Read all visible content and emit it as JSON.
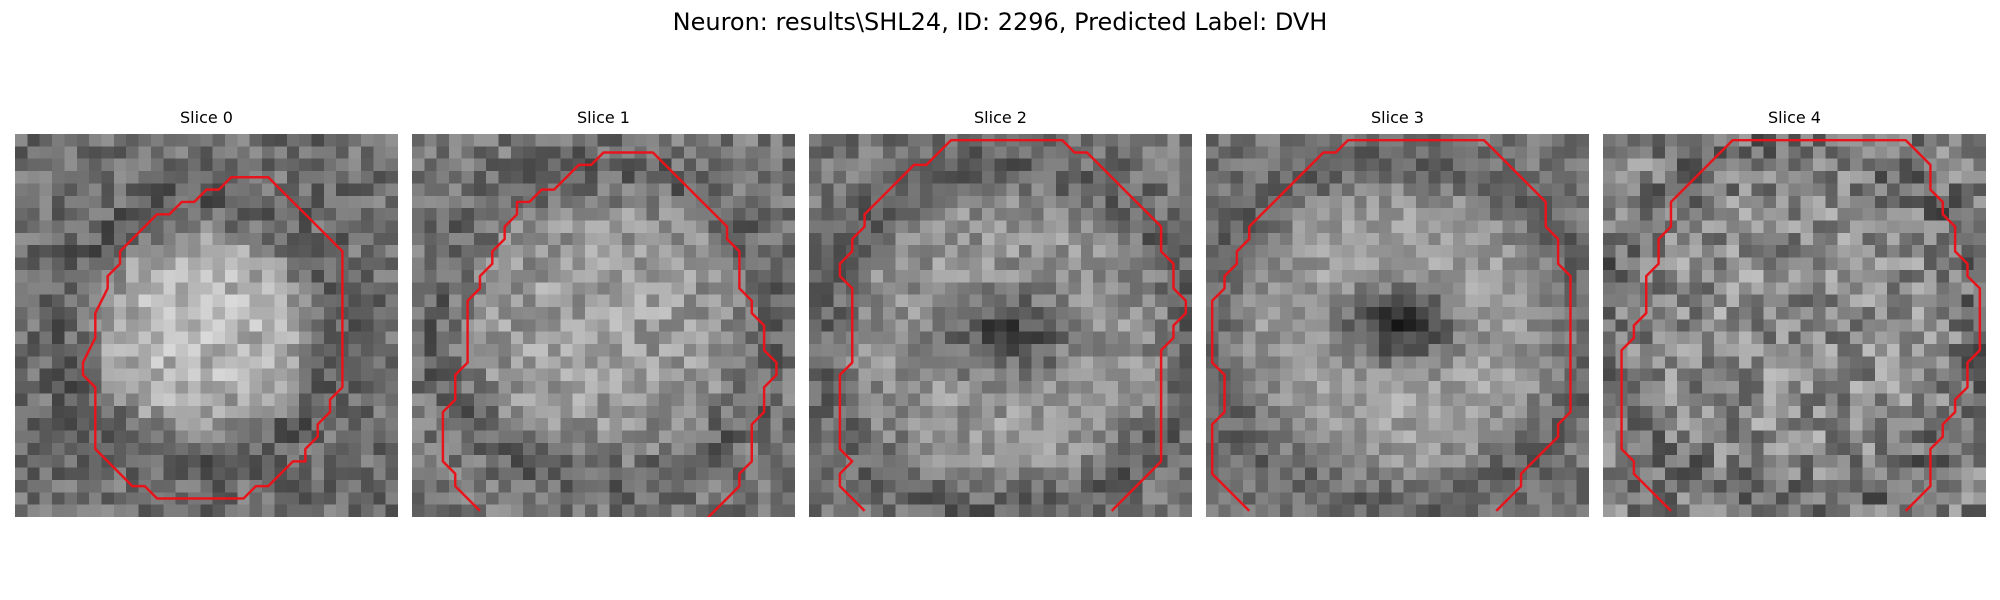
{
  "figure": {
    "title": "Neuron: results\\SHL24, ID: 2296, Predicted Label: DVH"
  },
  "contour_color": "#e8141b",
  "slices": [
    {
      "title": "Slice 0",
      "contour": {
        "closed": true,
        "points": [
          [
            20,
            3
          ],
          [
            21,
            4
          ],
          [
            22,
            5
          ],
          [
            23,
            6
          ],
          [
            25,
            8
          ],
          [
            26,
            9
          ],
          [
            26,
            13
          ],
          [
            26,
            15
          ],
          [
            26,
            20
          ],
          [
            25,
            21
          ],
          [
            25,
            22
          ],
          [
            24,
            23
          ],
          [
            24,
            24
          ],
          [
            23,
            25
          ],
          [
            23,
            26
          ],
          [
            22,
            26
          ],
          [
            21,
            27
          ],
          [
            20,
            28
          ],
          [
            19,
            28
          ],
          [
            18,
            29
          ],
          [
            11,
            29
          ],
          [
            10,
            28
          ],
          [
            9,
            28
          ],
          [
            8,
            27
          ],
          [
            7,
            26
          ],
          [
            6,
            25
          ],
          [
            6,
            24
          ],
          [
            6,
            20
          ],
          [
            5,
            19
          ],
          [
            5,
            18
          ],
          [
            6,
            16
          ],
          [
            6,
            14
          ],
          [
            7,
            12
          ],
          [
            7,
            11
          ],
          [
            8,
            10
          ],
          [
            8,
            9
          ],
          [
            9,
            8
          ],
          [
            10,
            7
          ],
          [
            11,
            6
          ],
          [
            12,
            6
          ],
          [
            13,
            5
          ],
          [
            14,
            5
          ],
          [
            15,
            4
          ],
          [
            16,
            4
          ],
          [
            17,
            3
          ]
        ]
      }
    },
    {
      "title": "Slice 1",
      "contour": {
        "closed": false,
        "points": [
          [
            5,
            30
          ],
          [
            3,
            28
          ],
          [
            3,
            27
          ],
          [
            2,
            26
          ],
          [
            2,
            22
          ],
          [
            3,
            21
          ],
          [
            3,
            19
          ],
          [
            4,
            18
          ],
          [
            4,
            13
          ],
          [
            5,
            12
          ],
          [
            5,
            11
          ],
          [
            6,
            10
          ],
          [
            6,
            9
          ],
          [
            7,
            8
          ],
          [
            7,
            7
          ],
          [
            8,
            6
          ],
          [
            8,
            5
          ],
          [
            9,
            5
          ],
          [
            10,
            4
          ],
          [
            11,
            4
          ],
          [
            12,
            3
          ],
          [
            13,
            2
          ],
          [
            14,
            2
          ],
          [
            15,
            1
          ],
          [
            19,
            1
          ],
          [
            20,
            2
          ],
          [
            21,
            3
          ],
          [
            22,
            4
          ],
          [
            23,
            5
          ],
          [
            24,
            6
          ],
          [
            25,
            7
          ],
          [
            25,
            8
          ],
          [
            26,
            9
          ],
          [
            26,
            12
          ],
          [
            27,
            13
          ],
          [
            27,
            14
          ],
          [
            28,
            15
          ],
          [
            28,
            17
          ],
          [
            29,
            18
          ],
          [
            29,
            19
          ],
          [
            28,
            20
          ],
          [
            28,
            22
          ],
          [
            27,
            23
          ],
          [
            27,
            26
          ],
          [
            26,
            27
          ],
          [
            26,
            28
          ],
          [
            25,
            29
          ],
          [
            24,
            30
          ],
          [
            23,
            31
          ]
        ]
      }
    },
    {
      "title": "Slice 2",
      "contour": {
        "closed": false,
        "points": [
          [
            4,
            30
          ],
          [
            2,
            28
          ],
          [
            2,
            27
          ],
          [
            3,
            26
          ],
          [
            2,
            25
          ],
          [
            2,
            19
          ],
          [
            3,
            18
          ],
          [
            3,
            12
          ],
          [
            2,
            11
          ],
          [
            2,
            10
          ],
          [
            3,
            9
          ],
          [
            3,
            8
          ],
          [
            4,
            7
          ],
          [
            4,
            6
          ],
          [
            5,
            5
          ],
          [
            6,
            4
          ],
          [
            7,
            3
          ],
          [
            8,
            2
          ],
          [
            9,
            2
          ],
          [
            10,
            1
          ],
          [
            11,
            0
          ],
          [
            12,
            0
          ],
          [
            20,
            0
          ],
          [
            21,
            1
          ],
          [
            22,
            1
          ],
          [
            23,
            2
          ],
          [
            24,
            3
          ],
          [
            25,
            4
          ],
          [
            26,
            5
          ],
          [
            27,
            6
          ],
          [
            28,
            7
          ],
          [
            28,
            9
          ],
          [
            29,
            10
          ],
          [
            29,
            12
          ],
          [
            30,
            13
          ],
          [
            30,
            14
          ],
          [
            29,
            15
          ],
          [
            29,
            16
          ],
          [
            28,
            17
          ],
          [
            28,
            25
          ],
          [
            28,
            26
          ],
          [
            27,
            27
          ],
          [
            26,
            28
          ],
          [
            25,
            29
          ],
          [
            24,
            30
          ]
        ]
      }
    },
    {
      "title": "Slice 3",
      "contour": {
        "closed": false,
        "points": [
          [
            3,
            30
          ],
          [
            2,
            29
          ],
          [
            1,
            28
          ],
          [
            0,
            27
          ],
          [
            0,
            23
          ],
          [
            1,
            22
          ],
          [
            1,
            19
          ],
          [
            0,
            18
          ],
          [
            0,
            13
          ],
          [
            1,
            12
          ],
          [
            1,
            11
          ],
          [
            2,
            10
          ],
          [
            2,
            9
          ],
          [
            3,
            8
          ],
          [
            3,
            7
          ],
          [
            4,
            6
          ],
          [
            5,
            5
          ],
          [
            6,
            4
          ],
          [
            7,
            3
          ],
          [
            8,
            2
          ],
          [
            9,
            1
          ],
          [
            10,
            1
          ],
          [
            11,
            0
          ],
          [
            22,
            0
          ],
          [
            23,
            1
          ],
          [
            24,
            2
          ],
          [
            25,
            3
          ],
          [
            26,
            4
          ],
          [
            27,
            5
          ],
          [
            27,
            7
          ],
          [
            28,
            8
          ],
          [
            28,
            10
          ],
          [
            29,
            11
          ],
          [
            29,
            17
          ],
          [
            29,
            22
          ],
          [
            28,
            23
          ],
          [
            28,
            24
          ],
          [
            27,
            25
          ],
          [
            26,
            26
          ],
          [
            25,
            27
          ],
          [
            25,
            28
          ],
          [
            24,
            29
          ],
          [
            23,
            30
          ]
        ]
      }
    },
    {
      "title": "Slice 4",
      "contour": {
        "closed": false,
        "points": [
          [
            5,
            30
          ],
          [
            4,
            29
          ],
          [
            3,
            28
          ],
          [
            2,
            27
          ],
          [
            2,
            26
          ],
          [
            1,
            25
          ],
          [
            1,
            17
          ],
          [
            2,
            16
          ],
          [
            2,
            15
          ],
          [
            3,
            14
          ],
          [
            3,
            11
          ],
          [
            4,
            10
          ],
          [
            4,
            8
          ],
          [
            5,
            7
          ],
          [
            5,
            5
          ],
          [
            6,
            4
          ],
          [
            7,
            3
          ],
          [
            8,
            2
          ],
          [
            9,
            1
          ],
          [
            10,
            0
          ],
          [
            11,
            0
          ],
          [
            24,
            0
          ],
          [
            25,
            1
          ],
          [
            26,
            2
          ],
          [
            26,
            4
          ],
          [
            27,
            5
          ],
          [
            27,
            6
          ],
          [
            28,
            7
          ],
          [
            28,
            9
          ],
          [
            29,
            10
          ],
          [
            29,
            11
          ],
          [
            30,
            12
          ],
          [
            30,
            17
          ],
          [
            29,
            18
          ],
          [
            29,
            20
          ],
          [
            28,
            21
          ],
          [
            28,
            22
          ],
          [
            27,
            23
          ],
          [
            27,
            24
          ],
          [
            26,
            25
          ],
          [
            26,
            28
          ],
          [
            25,
            29
          ],
          [
            24,
            30
          ]
        ]
      }
    }
  ]
}
